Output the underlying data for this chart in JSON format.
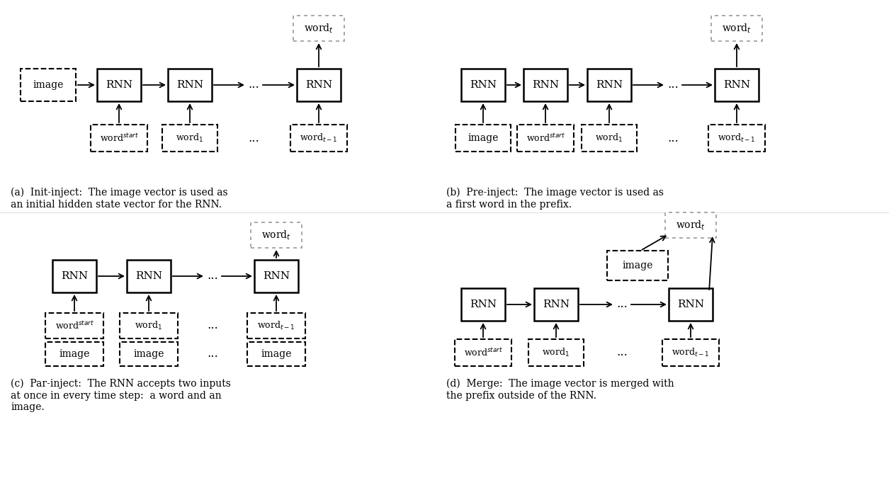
{
  "bg": "#ffffff",
  "panel_a_caption": "(a)  Init-inject:  The image vector is used as\nan initial hidden state vector for the RNN.",
  "panel_b_caption": "(b)  Pre-inject:  The image vector is used as\na first word in the prefix.",
  "panel_c_caption": "(c)  Par-inject:  The RNN accepts two inputs\nat once in every time step:  a word and an\nimage.",
  "panel_d_caption": "(d)  Merge:  The image vector is merged with\nthe prefix outside of the RNN.",
  "rnn_lw": 1.8,
  "dash_lw": 1.5,
  "output_lw": 1.2,
  "arrow_lw": 1.3,
  "rnn_fs": 11,
  "word_fs": 9,
  "cap_fs": 10
}
